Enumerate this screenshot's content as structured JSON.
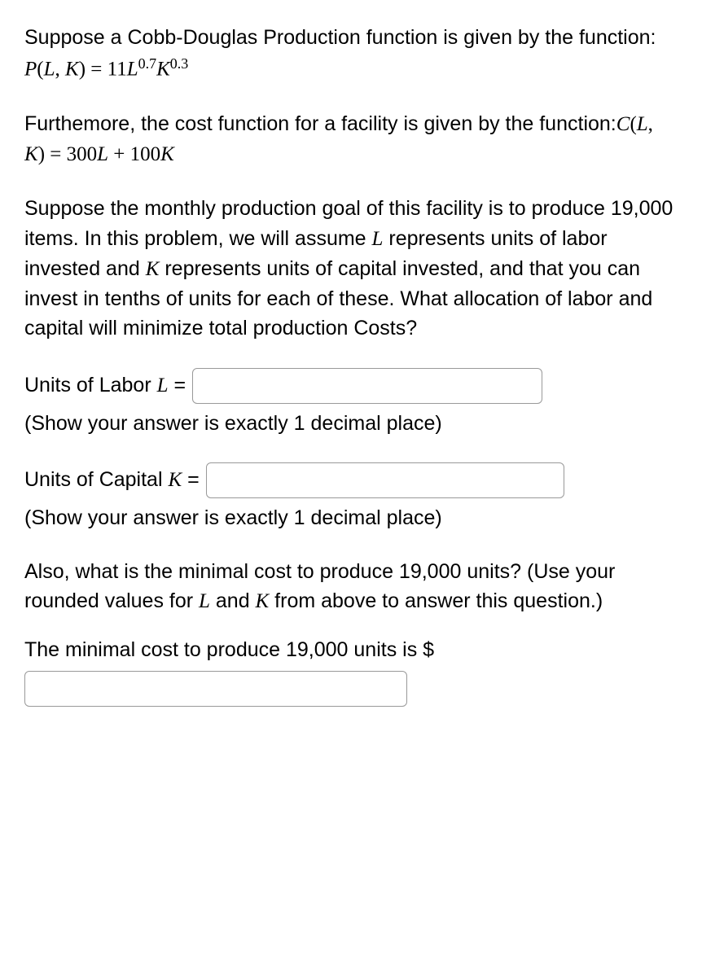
{
  "intro": {
    "line1_pre": "Suppose a Cobb-Douglas Production function is given by the function: ",
    "prod_fn_lhs_P": "P",
    "prod_fn_lhs_paren_open": "(",
    "prod_fn_lhs_L": "L",
    "prod_fn_lhs_comma": ", ",
    "prod_fn_lhs_K": "K",
    "prod_fn_lhs_paren_close": ") = 11",
    "prod_fn_L": "L",
    "prod_fn_L_exp": "0.7",
    "prod_fn_K": "K",
    "prod_fn_K_exp": "0.3"
  },
  "cost": {
    "line_pre": "Furthemore, the cost function for a facility is given by the function:",
    "cost_fn_C": "C",
    "cost_fn_paren_open": "(",
    "cost_fn_L": "L",
    "cost_fn_comma": ", ",
    "cost_fn_K": "K",
    "cost_fn_rhs": ") = 300",
    "cost_fn_Lvar": "L",
    "cost_fn_plus": " + 100",
    "cost_fn_Kvar": "K"
  },
  "goal": {
    "text1": "Suppose the monthly production goal of this facility is to produce 19,000 items. In this problem, we will assume ",
    "L": "L",
    "text2": " represents units of labor invested and ",
    "K": "K",
    "text3": " represents units of capital invested, and that you can invest in tenths of units for each of these. What allocation of labor and capital will minimize total production Costs?"
  },
  "labor": {
    "label_pre": "Units of Labor ",
    "L": "L",
    "label_post": " = ",
    "helper": "(Show your answer is exactly 1 decimal place)"
  },
  "capital": {
    "label_pre": "Units of Capital ",
    "K": "K",
    "label_post": " = ",
    "helper": "(Show your answer is exactly 1 decimal place)"
  },
  "mincost": {
    "question_pre": "Also, what is the minimal cost to produce 19,000 units? (Use your rounded values for ",
    "L": "L",
    "and": " and ",
    "K": "K",
    "question_post": " from above to answer this question.)",
    "answer_label": "The minimal cost to produce 19,000 units is $"
  }
}
